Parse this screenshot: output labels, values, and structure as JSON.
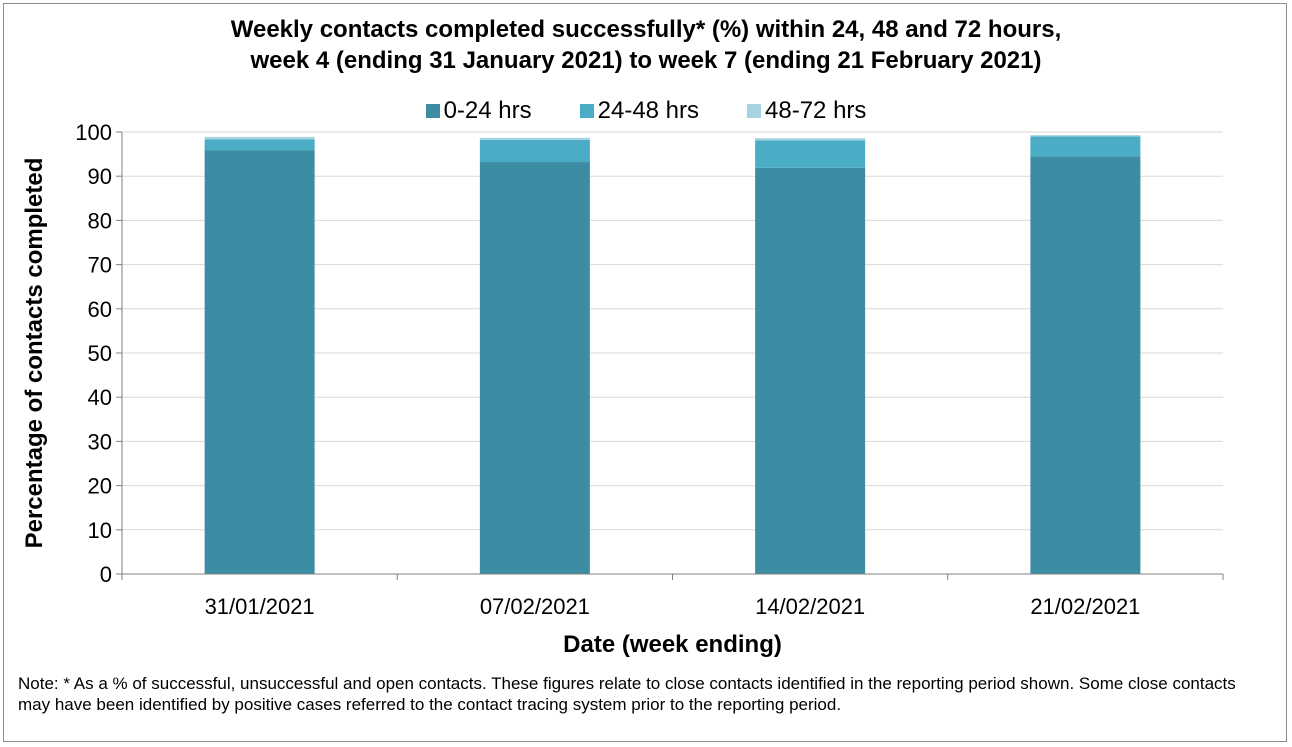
{
  "chart_data": {
    "type": "bar",
    "stacked": true,
    "title_line1": "Weekly contacts completed successfully* (%) within 24, 48 and 72 hours,",
    "title_line2": "week 4 (ending 31 January 2021) to week 7 (ending 21 February 2021)",
    "xlabel": "Date (week ending)",
    "ylabel": "Percentage of contacts completed",
    "ylim": [
      0,
      100
    ],
    "yticks": [
      0,
      10,
      20,
      30,
      40,
      50,
      60,
      70,
      80,
      90,
      100
    ],
    "grid": true,
    "legend_position": "top",
    "categories": [
      "31/01/2021",
      "07/02/2021",
      "14/02/2021",
      "21/02/2021"
    ],
    "series": [
      {
        "name": "0-24 hrs",
        "color": "#3c8da3",
        "values": [
          95.9,
          93.2,
          91.9,
          94.5
        ]
      },
      {
        "name": "24-48 hrs",
        "color": "#4bacc6",
        "values": [
          2.4,
          5.0,
          6.2,
          4.5
        ]
      },
      {
        "name": "48-72 hrs",
        "color": "#a6d3e0",
        "values": [
          0.6,
          0.5,
          0.5,
          0.3
        ]
      }
    ]
  },
  "note": "Note: * As a % of successful, unsuccessful and open contacts. These figures relate to close contacts identified in the reporting period shown. Some close contacts may have been identified by positive cases referred to the contact tracing system prior to the reporting period."
}
